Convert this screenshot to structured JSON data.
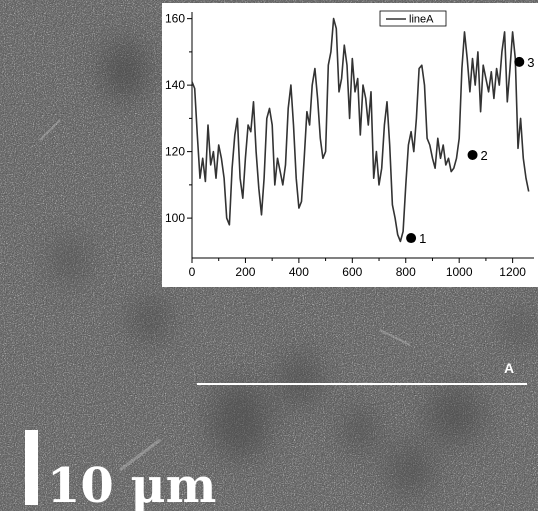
{
  "micrograph": {
    "scale_bar_label": "10 μm",
    "line_label": "A",
    "base_color": "#6e6e6e"
  },
  "chart_data": {
    "type": "line",
    "title": "",
    "xlabel": "",
    "ylabel": "",
    "xlim": [
      0,
      1280
    ],
    "ylim": [
      88,
      162
    ],
    "x_ticks": [
      0,
      200,
      400,
      600,
      800,
      1000,
      1200
    ],
    "y_ticks": [
      100,
      120,
      140,
      160
    ],
    "grid": false,
    "legend_position": "top-right",
    "series": [
      {
        "name": "lineA",
        "color": "#333333",
        "x": [
          0,
          10,
          20,
          30,
          40,
          50,
          60,
          70,
          80,
          90,
          100,
          110,
          120,
          130,
          140,
          150,
          160,
          170,
          180,
          190,
          200,
          210,
          220,
          230,
          240,
          250,
          260,
          270,
          280,
          290,
          300,
          310,
          320,
          330,
          340,
          350,
          360,
          370,
          380,
          390,
          400,
          410,
          420,
          430,
          440,
          450,
          460,
          470,
          480,
          490,
          500,
          510,
          520,
          530,
          540,
          550,
          560,
          570,
          580,
          590,
          600,
          610,
          620,
          630,
          640,
          650,
          660,
          670,
          680,
          690,
          700,
          710,
          720,
          730,
          740,
          750,
          760,
          770,
          780,
          790,
          800,
          810,
          820,
          830,
          840,
          850,
          860,
          870,
          880,
          890,
          900,
          910,
          920,
          930,
          940,
          950,
          960,
          970,
          980,
          990,
          1000,
          1010,
          1020,
          1030,
          1040,
          1050,
          1060,
          1070,
          1080,
          1090,
          1100,
          1110,
          1120,
          1130,
          1140,
          1150,
          1160,
          1170,
          1180,
          1190,
          1200,
          1210,
          1220,
          1230,
          1240,
          1250,
          1260
        ],
        "y": [
          141,
          139,
          125,
          112,
          118,
          111,
          128,
          116,
          120,
          112,
          122,
          118,
          112,
          100,
          98,
          115,
          125,
          130,
          112,
          106,
          118,
          128,
          126,
          135,
          120,
          109,
          101,
          112,
          130,
          133,
          128,
          110,
          118,
          114,
          110,
          116,
          133,
          140,
          128,
          112,
          103,
          105,
          118,
          132,
          128,
          140,
          145,
          136,
          124,
          118,
          120,
          146,
          150,
          160,
          157,
          138,
          142,
          152,
          146,
          130,
          148,
          138,
          142,
          125,
          140,
          136,
          128,
          138,
          112,
          120,
          110,
          115,
          128,
          135,
          122,
          104,
          100,
          95,
          93,
          96,
          110,
          122,
          126,
          120,
          130,
          145,
          146,
          140,
          124,
          122,
          118,
          115,
          124,
          118,
          122,
          116,
          118,
          114,
          115,
          118,
          124,
          145,
          156,
          148,
          138,
          148,
          140,
          150,
          132,
          146,
          142,
          138,
          144,
          136,
          145,
          140,
          150,
          156,
          135,
          145,
          156,
          148,
          121,
          130,
          118,
          112,
          108
        ]
      }
    ],
    "annotations": [
      {
        "label": "1",
        "x": 820,
        "y": 94
      },
      {
        "label": "2",
        "x": 1050,
        "y": 119
      },
      {
        "label": "3",
        "x": 1225,
        "y": 147
      }
    ]
  }
}
